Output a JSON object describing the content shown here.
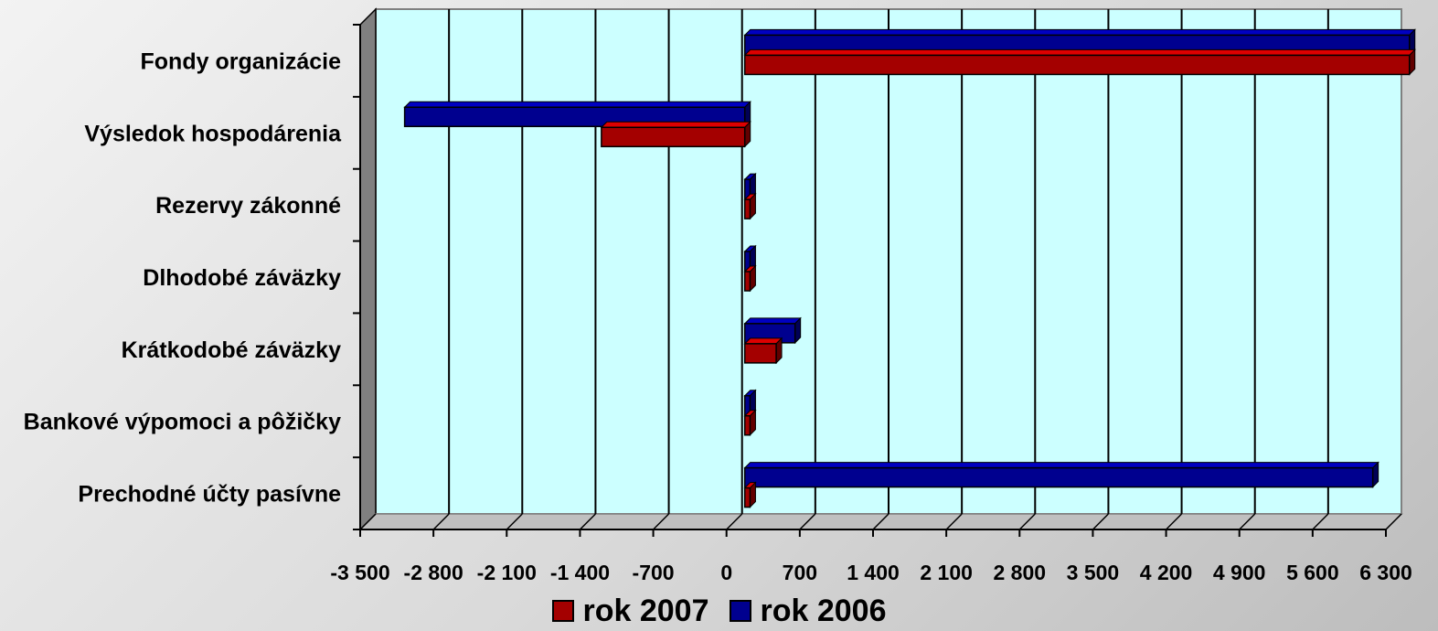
{
  "chart_data": {
    "type": "bar",
    "orientation": "horizontal",
    "categories": [
      "Fondy organizácie",
      "Výsledok hospodárenia",
      "Rezervy zákonné",
      "Dlhodobé záväzky",
      "Krátkodobé záväzky",
      "Bankové výpomoci a pôžičky",
      "Prechodné účty pasívne"
    ],
    "series": [
      {
        "name": "rok 2007",
        "color": "#a40000",
        "values": [
          6350,
          -1370,
          50,
          50,
          300,
          50,
          50
        ]
      },
      {
        "name": "rok 2006",
        "color": "#00008f",
        "values": [
          6350,
          -3250,
          50,
          50,
          480,
          50,
          6000
        ]
      }
    ],
    "xlim": [
      -3500,
      6300
    ],
    "xticks": [
      "-3 500",
      "-2 800",
      "-2 100",
      "-1 400",
      "-700",
      "0",
      "700",
      "1 400",
      "2 100",
      "2 800",
      "3 500",
      "4 200",
      "4 900",
      "5 600",
      "6 300"
    ],
    "grid": true,
    "legend_position": "bottom"
  }
}
